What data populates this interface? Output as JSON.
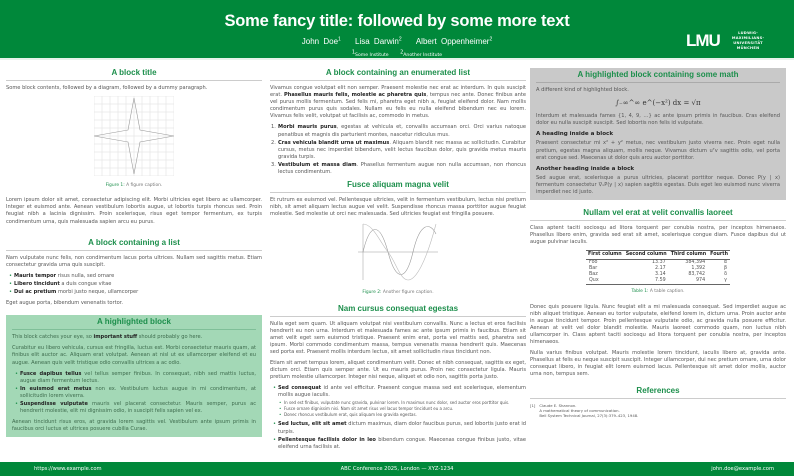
{
  "header": {
    "title": "Some fancy title: followed by some more text",
    "authors": [
      {
        "name": "John Doe",
        "sup": "1"
      },
      {
        "name": "Lisa Darwin",
        "sup": "2"
      },
      {
        "name": "Albert Oppenheimer",
        "sup": "2"
      }
    ],
    "institutes": [
      {
        "sup": "1",
        "name": "Some Institute"
      },
      {
        "sup": "2",
        "name": "Another Institute"
      }
    ],
    "logo": {
      "mark": "LMU",
      "lines": [
        "LUDWIG-",
        "MAXIMILIANS-",
        "UNIVERSITÄT",
        "MÜNCHEN"
      ]
    }
  },
  "col1": {
    "block1": {
      "title": "A block title",
      "intro": "Some block contents, followed by a diagram, followed by a dummy paragraph.",
      "fig_label": "Figure 1:",
      "fig_caption": "A figure caption.",
      "para": "Lorem ipsum dolor sit amet, consectetur adipiscing elit. Morbi ultricies eget libero ac ullamcorper. Integer et euismod ante. Aenean vestibulum lobortis augue, ut lobortis turpis rhoncus sed. Proin feugiat nibh a lacinia dignissim. Proin scelerisque, risus eget tempor fermentum, ex turpis condimentum urna, quis malesuada sapien arcu eu purus."
    },
    "block2": {
      "title": "A block containing a list",
      "intro": "Nam vulputate nunc felis, non condimentum lacus porta ultrices. Nullam sed sagittis metus. Etiam consectetur gravida urna quis suscipit.",
      "items": [
        {
          "b": "Mauris tempor",
          "t": " risus nulla, sed ornare"
        },
        {
          "b": "Libero tincidunt",
          "t": " a duis congue vitae"
        },
        {
          "b": "Dui ac pretium",
          "t": " morbi justo neque, ullamcorper"
        }
      ],
      "outro": "Eget augue porta, bibendum venenatis tortor."
    },
    "block3": {
      "title": "A highlighted block",
      "p1a": "This block catches your eye, so ",
      "p1b": "important stuff",
      "p1c": " should probably go here.",
      "p2": "Curabitur eu libero vehicula, cursus est fringilla, luctus est. Morbi consectetur mauris quam, at finibus elit auctor ac. Aliquam erat volutpat. Aenean at nisl ut ex ullamcorper eleifend et eu augue. Aenean quis velit tristique odio convallis ultrices a ac odio.",
      "items": [
        {
          "b": "Fusce dapibus tellus",
          "t": " vel tellus semper finibus. In consequat, nibh sed mattis luctus, augue diam fermentum lectus."
        },
        {
          "b": "In euismod erat metus",
          "t": " non ex. Vestibulum luctus augue in mi condimentum, at sollicitudin lorem viverra."
        },
        {
          "b": "Suspendisse vulputate",
          "t": " mauris vel placerat consectetur. Mauris semper, purus ac hendrerit molestie, elit mi dignissim odio, in suscipit felis sapien vel ex."
        }
      ],
      "p3": "Aenean tincidunt risus eros, at gravida lorem sagittis vel. Vestibulum ante ipsum primis in faucibus orci luctus et ultrices posuere cubilia Curae."
    }
  },
  "col2": {
    "block1": {
      "title": "A block containing an enumerated list",
      "p1a": "Vivamus congue volutpat elit non semper. Praesent molestie nec erat ac interdum. In quis suscipit erat. ",
      "p1b": "Phasellus mauris felis, molestie ac pharetra quis",
      "p1c": ", tempus nec ante. Donec finibus ante vel purus mollis fermentum. Sed felis mi, pharetra eget nibh a, feugiat eleifend dolor. Nam mollis condimentum purus quis sodales. Nullam eu felis eu nulla eleifend bibendum nec eu lorem. Vivamus felis velit, volutpat ut facilisis ac, commodo in metus.",
      "items": [
        {
          "n": "1.",
          "b": "Morbi mauris purus",
          "t": ", egestas at vehicula et, convallis accumsan orci. Orci varius natoque penatibus et magnis dis parturient montes, nascetur ridiculus mus."
        },
        {
          "n": "2.",
          "b": "Cras vehicula blandit urna ut maximus",
          "t": ". Aliquam blandit nec massa ac sollicitudin. Curabitur cursus, metus nec imperdiet bibendum, velit lectus faucibus dolor, quis gravida metus mauris gravida turpis."
        },
        {
          "n": "3.",
          "b": "Vestibulum et massa diam",
          "t": ". Phasellus fermentum augue non nulla accumsan, non rhoncus lectus condimentum."
        }
      ]
    },
    "block2": {
      "title": "Fusce aliquam magna velit",
      "para": "Et rutrum ex euismod vel. Pellentesque ultricies, velit in fermentum vestibulum, lectus nisi pretium nibh, sit amet aliquam lectus augue vel velit. Suspendisse rhoncus massa porttitor augue feugiat molestie. Sed molestie ut orci nec malesuada. Sed ultricies feugiat est fringilla posuere.",
      "fig_label": "Figure 2:",
      "fig_caption": "Another figure caption."
    },
    "block3": {
      "title": "Nam cursus consequat egestas",
      "p1": "Nulla eget sem quam. Ut aliquam volutpat nisi vestibulum convallis. Nunc a lectus et eros facilisis hendrerit eu non urna. Interdum et malesuada fames ac ante ipsum primis in faucibus. Etiam sit amet velit eget sem euismod tristique. Praesent enim erat, porta vel mattis sed, pharetra sed ipsum. Morbi commodo condimentum massa, tempus venenatis massa hendrerit quis. Maecenas sed porta est. Praesent mollis interdum lectus, sit amet sollicitudin risus tincidunt non.",
      "p2": "Etiam sit amet tempus lorem, aliquet condimentum velit. Donec et nibh consequat, sagittis ex eget, dictum orci. Etiam quis semper ante. Ut eu mauris purus. Proin nec consectetur ligula. Mauris pretium molestie ullamcorper. Integer nisi neque, aliquet et odio non, sagittis porta justo.",
      "items": [
        {
          "b": "Sed consequat",
          "t": " id ante vel efficitur. Praesent congue massa sed est scelerisque, elementum mollis augue iaculis.",
          "sub": [
            "In sed est finibus, vulputate nunc gravida, pulvinar lorem. In maximus nunc dolor, sed auctor eros porttitor quis.",
            "Fusce ornare dignissim nisi. Nam sit amet risus vel lacus tempor tincidunt eu a arcu.",
            "Donec rhoncus vestibulum erat, quis aliquam leo gravida egestas."
          ]
        },
        {
          "b": "Sed luctus, elit sit amet",
          "t": " dictum maximus, diam dolor faucibus purus, sed lobortis justo erat id turpis."
        },
        {
          "b": "Pellentesque facilisis dolor in leo",
          "t": " bibendum congue. Maecenas congue finibus justo, vitae eleifend urna facilisis at."
        }
      ]
    }
  },
  "col3": {
    "block1": {
      "title": "A highlighted block containing some math",
      "intro": "A different kind of highlighted block.",
      "math": "∫₋∞^∞ e^(−x²) dx = √π",
      "p1": "Interdum et malesuada fames {1, 4, 9, …} ac ante ipsum primis in faucibus. Cras eleifend dolor eu nulla suscipit suscipit. Sed lobortis non felis id vulputate.",
      "h1": "A heading inside a block",
      "p2": "Praesent consectetur mi x² + y² metus, nec vestibulum justo viverra nec. Proin eget nulla pretium, egestas magna aliquam, mollis neque. Vivamus dictum uᵀv sagittis odio, vel porta erat congue sed. Maecenas ut dolor quis arcu auctor porttitor.",
      "h2": "Another heading inside a block",
      "p3": "Sed augue erat, scelerisque a purus ultricies, placerat porttitor neque. Donec P(y | x) fermentum consectetur ∇ₓP(y | x) sapien sagittis egestas. Duis eget leo euismod nunc viverra imperdiet nec id justo."
    },
    "block2": {
      "title": "Nullam vel erat at velit convallis laoreet",
      "intro": "Class aptent taciti sociosqu ad litora torquent per conubia nostra, per inceptos himenaeos. Phasellus libero enim, gravida sed erat sit amet, scelerisque congue diam. Fusce dapibus dui ut augue pulvinar iaculis.",
      "table": {
        "headers": [
          "First column",
          "Second column",
          "Third column",
          "Fourth"
        ],
        "rows": [
          [
            "Foo",
            "13.37",
            "384,394",
            "α"
          ],
          [
            "Bar",
            "2.17",
            "1,392",
            "β"
          ],
          [
            "Baz",
            "3.14",
            "83,742",
            "δ"
          ],
          [
            "Qux",
            "7.59",
            "974",
            "γ"
          ]
        ]
      },
      "tab_label": "Table 1:",
      "tab_caption": "A table caption.",
      "p1": "Donec quis posuere ligula. Nunc feugiat elit a mi malesuada consequat. Sed imperdiet augue ac nibh aliquet tristique. Aenean eu tortor vulputate, eleifend lorem in, dictum urna. Proin auctor ante in augue tincidunt tempor. Proin pellentesque vulputate odio, ac gravida nulla posuere efficitur. Aenean at velit vel dolor blandit molestie. Mauris laoreet commodo quam, non luctus nibh ullamcorper in. Class aptent taciti sociosqu ad litora torquent per conubia nostra, per inceptos himenaeos.",
      "p2": "Nulla varius finibus volutpat. Mauris molestie lorem tincidunt, iaculis libero at, gravida ante. Phasellus at felis eu neque suscipit suscipit. Integer ullamcorper, dui nec pretium ornare, urna dolor consequat libero, in feugiat elit lorem euismod lacus. Pellentesque sit amet dolor mollis, auctor urna non, tempus sem."
    },
    "refs": {
      "title": "References",
      "items": [
        {
          "n": "[1]",
          "lines": [
            "Claude E. Shannon.",
            "A mathematical theory of communication.",
            "Bell System Technical Journal, 27(3):379–423, 1948."
          ]
        }
      ]
    }
  },
  "footer": {
    "left": "https://www.example.com",
    "center": "ABC Conference 2025, London — XYZ-1234",
    "right": "john.doe@example.com"
  },
  "colors": {
    "brand": "#00883a",
    "title_green": "#1d8f4c",
    "highlight": "#a3d8b6",
    "gray_block": "#c9c9c9"
  }
}
